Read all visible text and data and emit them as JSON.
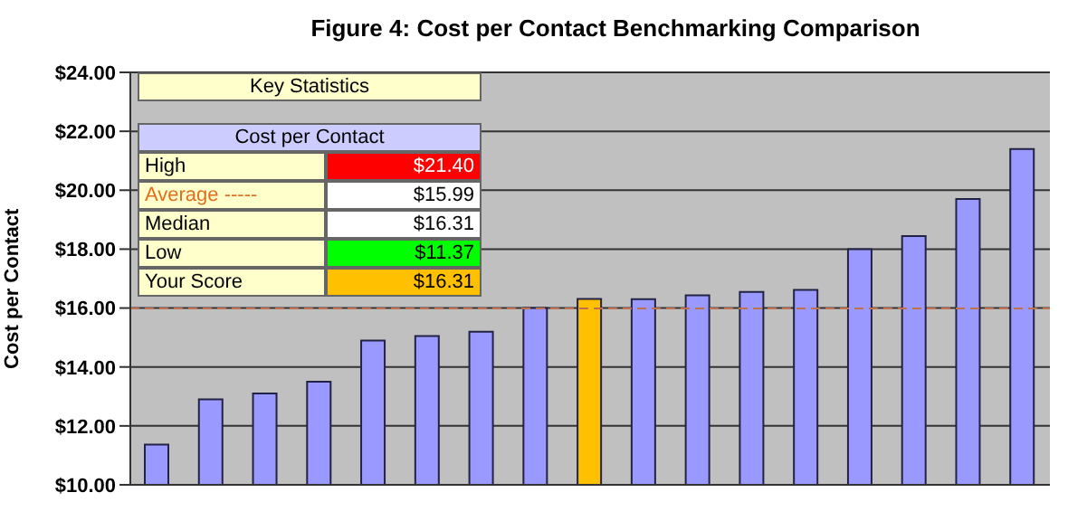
{
  "chart_data": {
    "type": "bar",
    "title": "Figure 4: Cost per Contact Benchmarking Comparison",
    "ylabel": "Cost per Contact",
    "categories": [
      null,
      null,
      null,
      null,
      null,
      null,
      null,
      null,
      null,
      null,
      null,
      null,
      null,
      null,
      null,
      null,
      null
    ],
    "values": [
      11.37,
      12.9,
      13.1,
      13.5,
      14.9,
      15.05,
      15.2,
      16.0,
      16.31,
      16.3,
      16.43,
      16.55,
      16.62,
      18.0,
      18.44,
      19.7,
      21.4
    ],
    "colors": [
      "#9999ff",
      "#9999ff",
      "#9999ff",
      "#9999ff",
      "#9999ff",
      "#9999ff",
      "#9999ff",
      "#9999ff",
      "#ffc000",
      "#9999ff",
      "#9999ff",
      "#9999ff",
      "#9999ff",
      "#9999ff",
      "#9999ff",
      "#9999ff",
      "#9999ff"
    ],
    "ylim": [
      10,
      24
    ],
    "yticks": [
      {
        "value": 10,
        "label": "$10.00"
      },
      {
        "value": 12,
        "label": "$12.00"
      },
      {
        "value": 14,
        "label": "$14.00"
      },
      {
        "value": 16,
        "label": "$16.00"
      },
      {
        "value": 18,
        "label": "$18.00"
      },
      {
        "value": 20,
        "label": "$20.00"
      },
      {
        "value": 22,
        "label": "$22.00"
      },
      {
        "value": 24,
        "label": "$24.00"
      }
    ],
    "grid": "y",
    "tick_labels": "y",
    "ref_lines": [
      {
        "axis": "y",
        "value": 15.99,
        "color": "#c0704d",
        "line_style": "dashed"
      }
    ],
    "annotations": [
      "Key Statistics",
      "Cost per Contact",
      "High",
      "$21.40",
      "Average -----",
      "$15.99",
      "Median",
      "$16.31",
      "Low",
      "$11.37",
      "Your Score",
      "$16.31"
    ]
  }
}
